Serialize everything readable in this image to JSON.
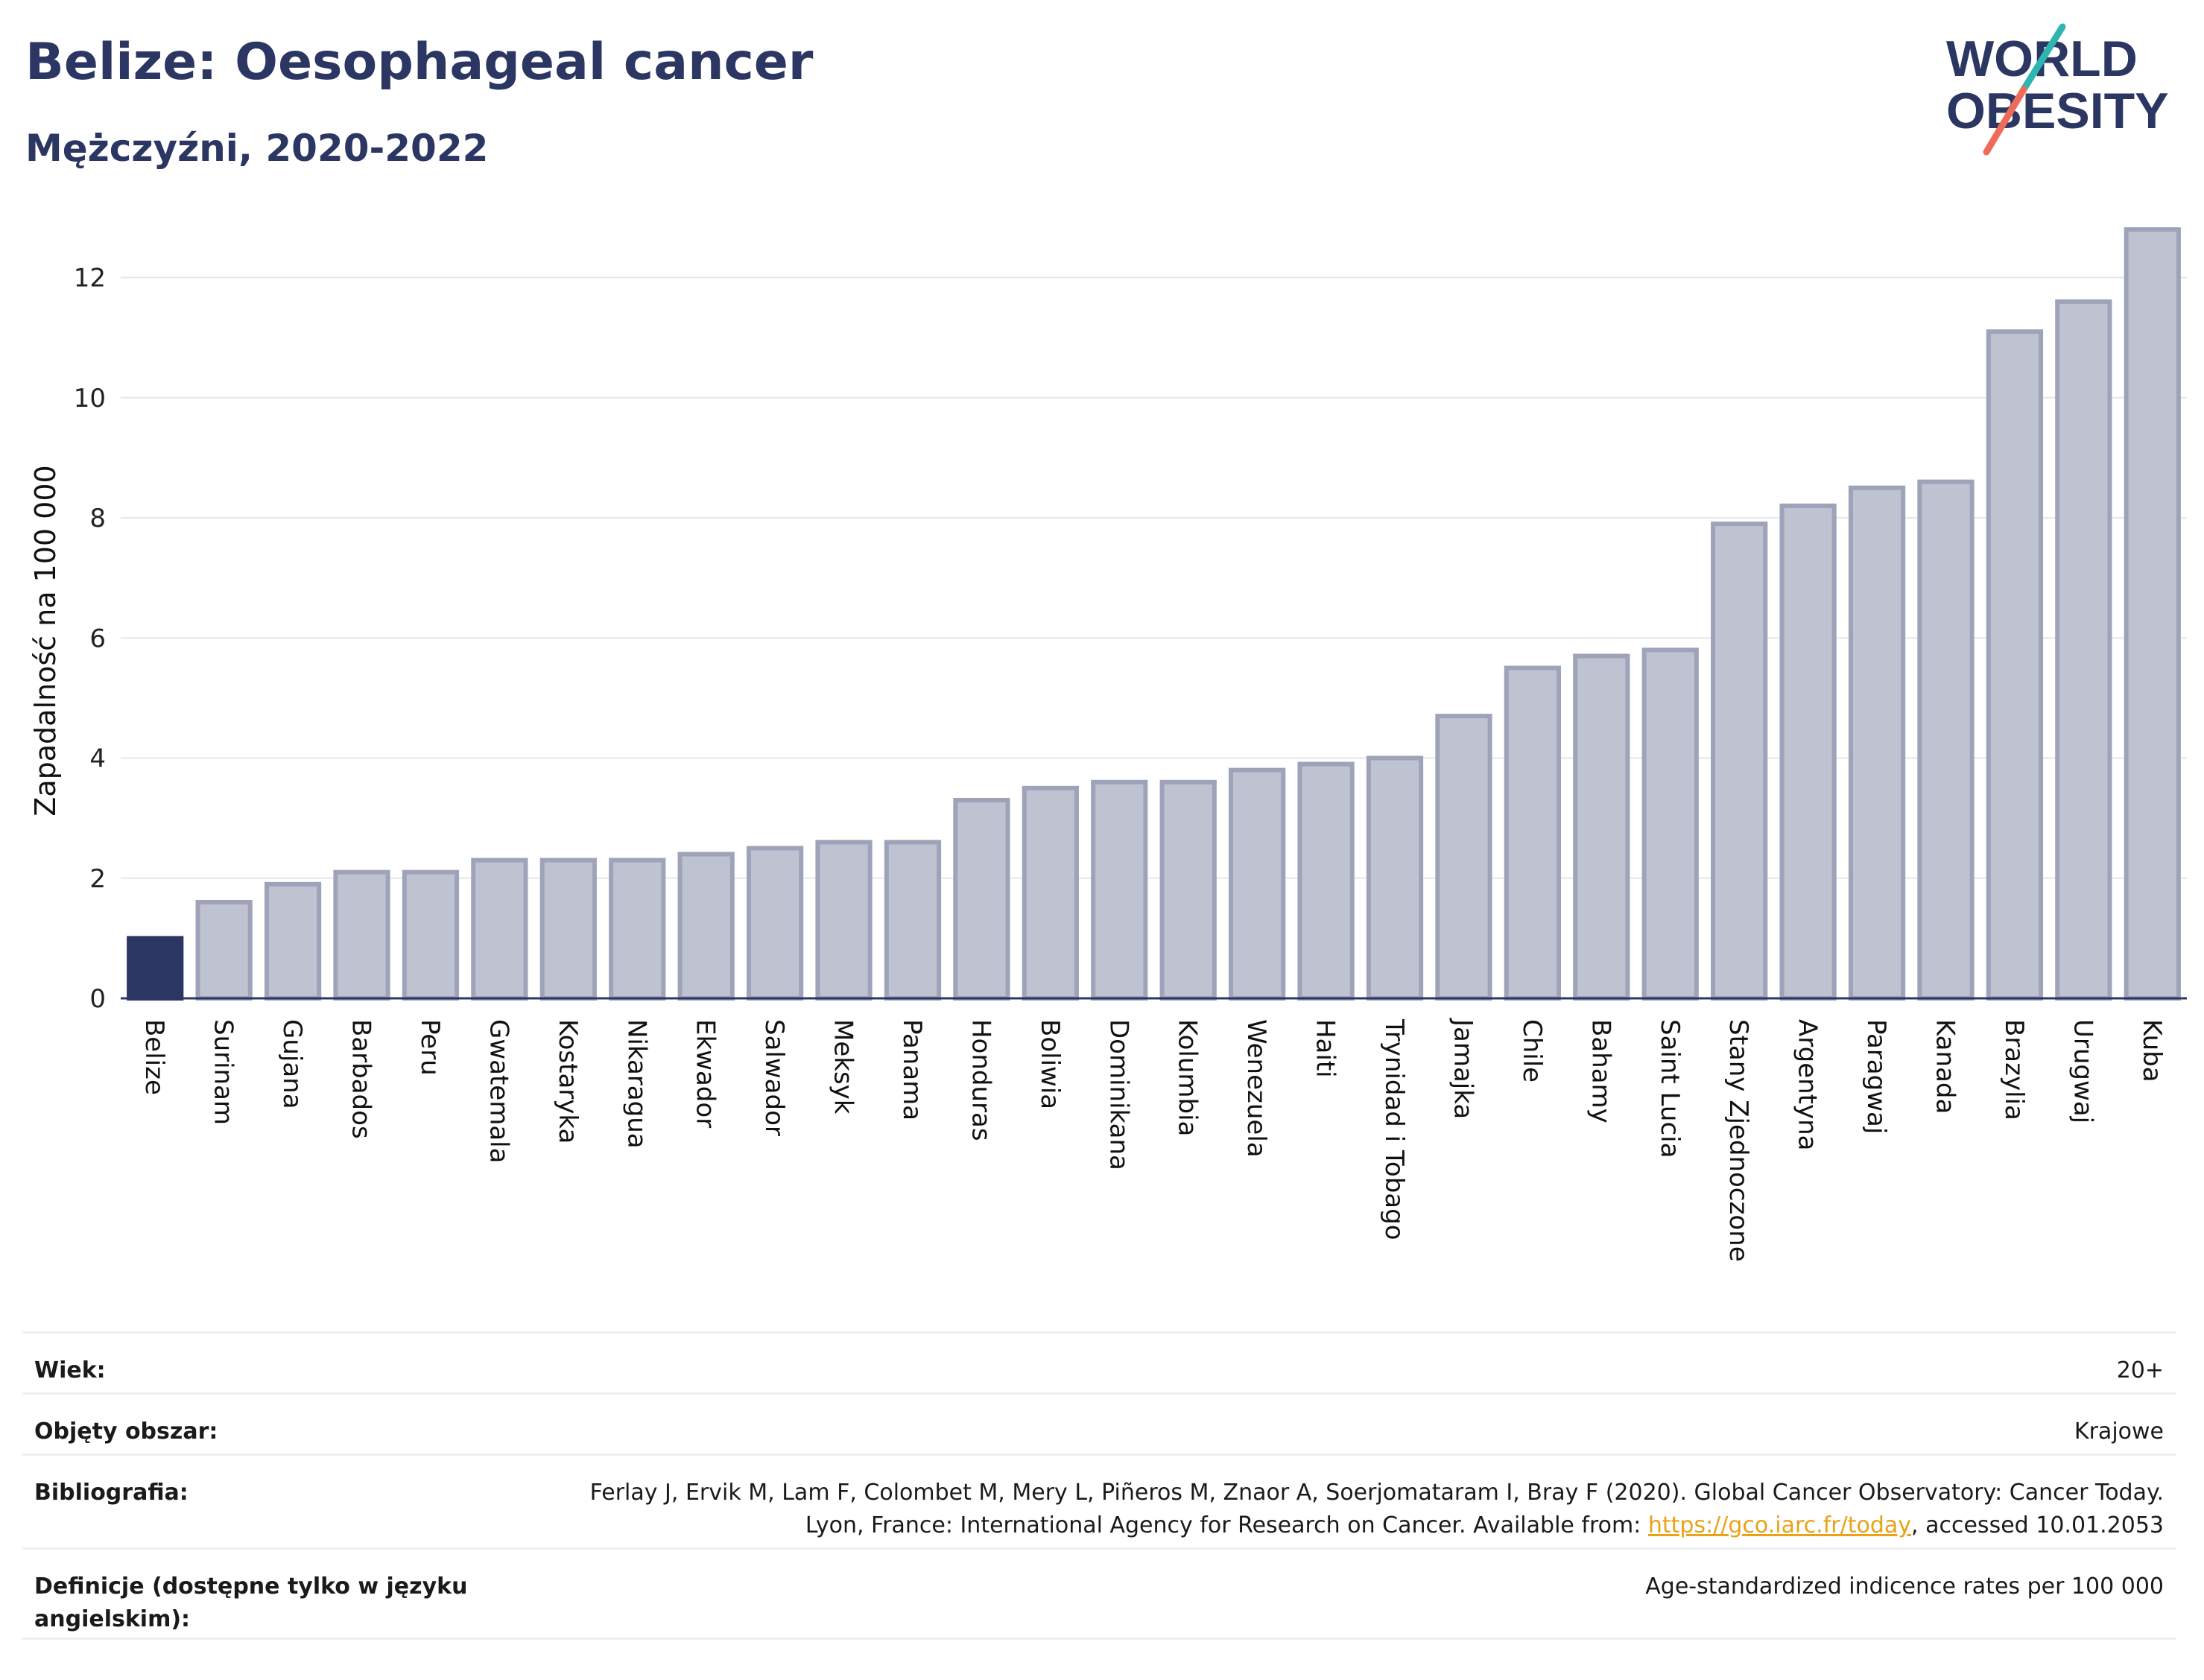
{
  "header": {
    "title": "Belize: Oesophageal cancer",
    "subtitle": "Mężczyźni, 2020-2022"
  },
  "logo": {
    "line1": "WORLD",
    "line2": "OBESITY"
  },
  "colors": {
    "highlight": "#2b3663",
    "bar_fill": "#bfc2d0",
    "bar_stroke": "#9ea3b9",
    "title": "#2b3663",
    "link": "#e8a317"
  },
  "chart_data": {
    "type": "bar",
    "ylabel": "Zapadalność na 100 000",
    "ylim": [
      0,
      12.9
    ],
    "yticks": [
      0,
      2,
      4,
      6,
      8,
      10,
      12
    ],
    "grid": true,
    "highlight": "Belize",
    "categories": [
      "Belize",
      "Surinam",
      "Gujana",
      "Barbados",
      "Peru",
      "Gwatemala",
      "Kostaryka",
      "Nikaragua",
      "Ekwador",
      "Salwador",
      "Meksyk",
      "Panama",
      "Honduras",
      "Boliwia",
      "Dominikana",
      "Kolumbia",
      "Wenezuela",
      "Haiti",
      "Trynidad i Tobago",
      "Jamajka",
      "Chile",
      "Bahamy",
      "Saint Lucia",
      "Stany Zjednoczone",
      "Argentyna",
      "Paragwaj",
      "Kanada",
      "Brazylia",
      "Urugwaj",
      "Kuba"
    ],
    "values": [
      1.0,
      1.6,
      1.9,
      2.1,
      2.1,
      2.3,
      2.3,
      2.3,
      2.4,
      2.5,
      2.6,
      2.6,
      3.3,
      3.5,
      3.6,
      3.6,
      3.8,
      3.9,
      4.0,
      4.7,
      5.5,
      5.7,
      5.8,
      7.9,
      8.2,
      8.5,
      8.6,
      11.1,
      11.6,
      12.8
    ]
  },
  "meta": {
    "age_label": "Wiek:",
    "age_value": "20+",
    "coverage_label": "Objęty obszar:",
    "coverage_value": "Krajowe",
    "biblio_label": "Bibliografia:",
    "biblio_text_1": "Ferlay J, Ervik M, Lam F, Colombet M, Mery L, Piñeros M, Znaor A, Soerjomataram I, Bray F (2020). Global Cancer Observatory: Cancer Today. Lyon, France: International Agency for Research on Cancer. Available from: ",
    "biblio_link": "https://gco.iarc.fr/today",
    "biblio_text_2": ", accessed 10.01.2053",
    "definition_label": "Definicje (dostępne tylko w języku angielskim):",
    "definition_value": "Age-standardized indicence rates per 100 000"
  }
}
